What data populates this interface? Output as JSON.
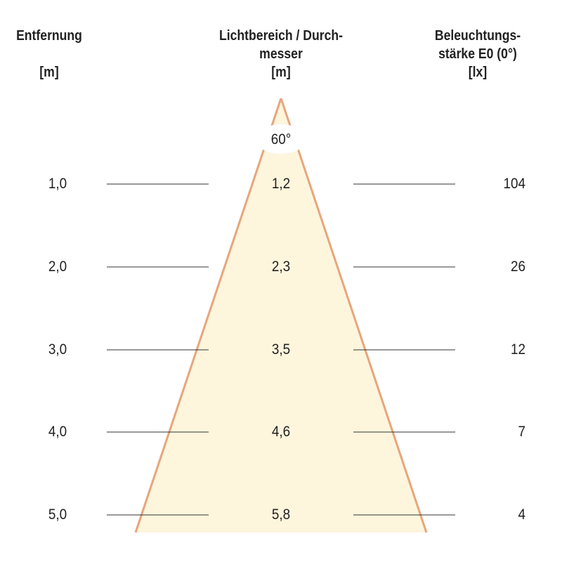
{
  "headers": {
    "distance": {
      "title": "Entfernung",
      "unit": "[m]"
    },
    "diameter": {
      "title_line1": "Lichtbereich / Durch-",
      "title_line2": "messer",
      "unit": "[m]"
    },
    "illuminance": {
      "title_line1": "Beleuchtungs-",
      "title_line2": "stärke E0 (0°)",
      "unit": "[lx]"
    }
  },
  "beam_angle": "60°",
  "rows": [
    {
      "distance": "1,0",
      "diameter": "1,2",
      "illuminance": "104"
    },
    {
      "distance": "2,0",
      "diameter": "2,3",
      "illuminance": "26"
    },
    {
      "distance": "3,0",
      "diameter": "3,5",
      "illuminance": "12"
    },
    {
      "distance": "4,0",
      "diameter": "4,6",
      "illuminance": "7"
    },
    {
      "distance": "5,0",
      "diameter": "5,8",
      "illuminance": "4"
    }
  ],
  "colors": {
    "cone_fill": "#fdf5dc",
    "cone_stroke": "#e6a67c",
    "lines": "#333333"
  }
}
